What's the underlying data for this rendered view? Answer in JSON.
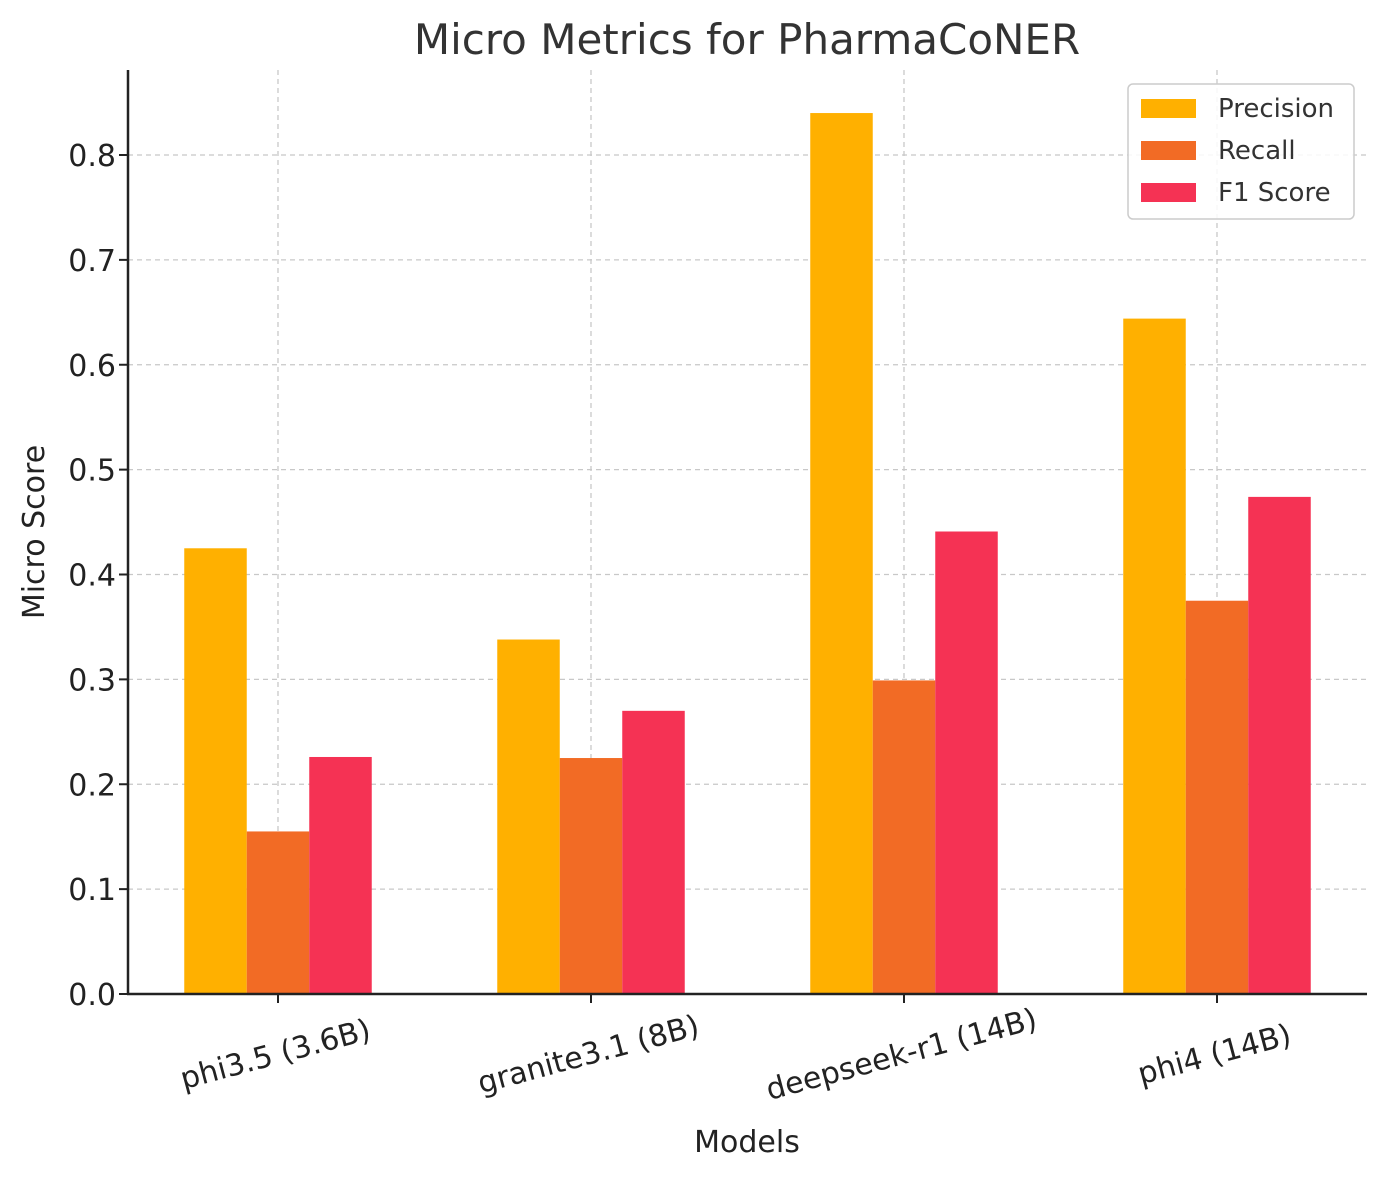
{
  "chart_data": {
    "type": "bar",
    "title": "Micro Metrics for PharmaCoNER",
    "xlabel": "Models",
    "ylabel": "Micro Score",
    "categories": [
      "phi3.5 (3.6B)",
      "granite3.1 (8B)",
      "deepseek-r1 (14B)",
      "phi4 (14B)"
    ],
    "series": [
      {
        "name": "Precision",
        "color": "#FFB000",
        "values": [
          0.425,
          0.338,
          0.84,
          0.644
        ]
      },
      {
        "name": "Recall",
        "color": "#F26B25",
        "values": [
          0.155,
          0.225,
          0.299,
          0.375
        ]
      },
      {
        "name": "F1 Score",
        "color": "#F53254",
        "values": [
          0.226,
          0.27,
          0.441,
          0.474
        ]
      }
    ],
    "ylim": [
      0,
      0.88
    ],
    "yticks": [
      "0.0",
      "0.1",
      "0.2",
      "0.3",
      "0.4",
      "0.5",
      "0.6",
      "0.7",
      "0.8"
    ],
    "grid": true,
    "legend_position": "top-right"
  }
}
